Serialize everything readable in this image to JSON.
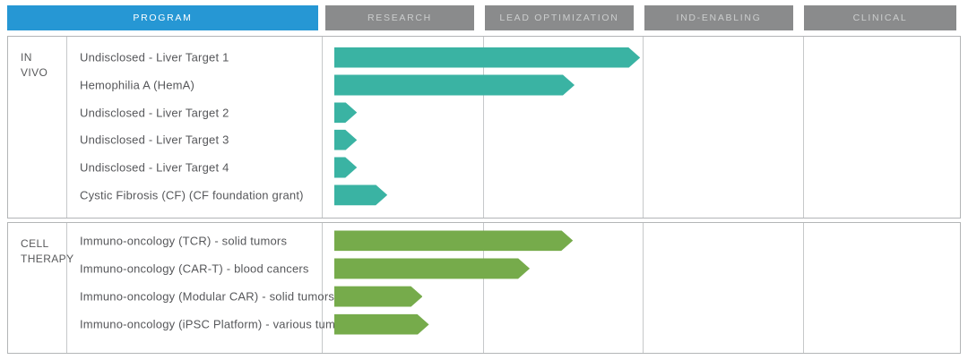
{
  "header": {
    "columns": [
      {
        "label": "PROGRAM"
      },
      {
        "label": "RESEARCH"
      },
      {
        "label": "LEAD OPTIMIZATION"
      },
      {
        "label": "IND-ENABLING"
      },
      {
        "label": "CLINICAL"
      }
    ]
  },
  "colors": {
    "program_header_bg": "#2697d4",
    "stage_header_bg": "#8a8b8c",
    "stage_header_text": "#cbcdcd",
    "in_vivo_bar": "#3ab3a3",
    "cell_therapy_bar": "#76ab4b",
    "border": "#b3b5b7",
    "text": "#58595b"
  },
  "chart_data": {
    "type": "bar",
    "title": "",
    "stages": [
      "RESEARCH",
      "LEAD OPTIMIZATION",
      "IND-ENABLING",
      "CLINICAL"
    ],
    "axis_note": "stage_extent measured in stage units, 0 = start of Research, 4 = end of Clinical",
    "series": [
      {
        "name": "IN VIVO",
        "color": "#3ab3a3",
        "programs": [
          {
            "label": "Undisclosed - Liver Target 1",
            "stage_extent": 1.99
          },
          {
            "label": "Hemophilia A (HemA)",
            "stage_extent": 1.58
          },
          {
            "label": "Undisclosed - Liver Target 2",
            "stage_extent": 0.22
          },
          {
            "label": "Undisclosed - Liver Target 3",
            "stage_extent": 0.22
          },
          {
            "label": "Undisclosed - Liver Target 4",
            "stage_extent": 0.22
          },
          {
            "label": "Cystic Fibrosis (CF) (CF foundation grant)",
            "stage_extent": 0.41
          }
        ]
      },
      {
        "name": "CELL THERAPY",
        "color": "#76ab4b",
        "programs": [
          {
            "label": "Immuno-oncology (TCR) - solid tumors",
            "stage_extent": 1.57
          },
          {
            "label": "Immuno-oncology (CAR-T) - blood cancers",
            "stage_extent": 1.3
          },
          {
            "label": "Immuno-oncology (Modular CAR) - solid tumors",
            "stage_extent": 0.63
          },
          {
            "label": "Immuno-oncology (iPSC Platform) - various tumors",
            "stage_extent": 0.67
          }
        ]
      }
    ]
  }
}
